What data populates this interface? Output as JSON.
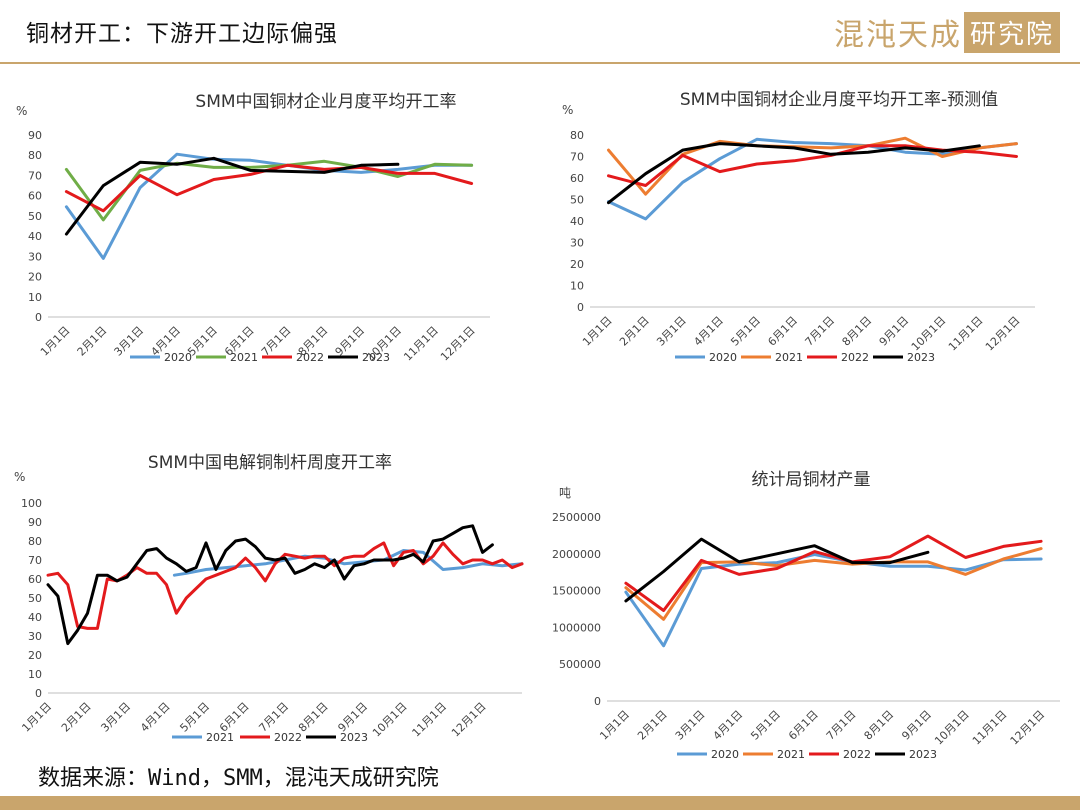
{
  "header": {
    "title": "铜材开工：下游开工边际偏强",
    "logo_text": "混沌天成",
    "logo_box_text": "研究院"
  },
  "footer": {
    "source": "数据来源：Wind，SMM，混沌天成研究院"
  },
  "colors": {
    "brand": "#c9a56c",
    "s2020": "#5b9bd5",
    "s2021_green": "#70ad47",
    "s2021_orange": "#ed7d31",
    "s2022": "#e31a1c",
    "s2023": "#000000"
  },
  "chart_data": [
    {
      "type": "line",
      "title": "SMM中国铜材企业月度平均开工率",
      "unit": "%",
      "categories": [
        "1月1日",
        "2月1日",
        "3月1日",
        "4月1日",
        "5月1日",
        "6月1日",
        "7月1日",
        "8月1日",
        "9月1日",
        "10月1日",
        "11月1日",
        "12月1日"
      ],
      "ylim": [
        0,
        90
      ],
      "yticks": [
        0,
        10,
        20,
        30,
        40,
        50,
        60,
        70,
        80,
        90
      ],
      "legend_position": "bottom",
      "series": [
        {
          "name": "2020",
          "color": "#5b9bd5",
          "values": [
            54.5,
            29,
            64,
            80.5,
            78,
            77.5,
            75,
            72.5,
            71.5,
            73,
            75,
            75
          ]
        },
        {
          "name": "2021",
          "color": "#70ad47",
          "values": [
            73,
            48,
            72.5,
            76,
            74,
            74,
            75,
            77,
            74,
            69.5,
            75.5,
            75
          ]
        },
        {
          "name": "2022",
          "color": "#e31a1c",
          "values": [
            62,
            52.5,
            70,
            60.5,
            68,
            70.5,
            75,
            73,
            74,
            71,
            71,
            66
          ]
        },
        {
          "name": "2023",
          "color": "#000000",
          "values": [
            41,
            65,
            76.5,
            75.5,
            78.5,
            72.5,
            72,
            71.5,
            75,
            75.5,
            null,
            null
          ]
        }
      ]
    },
    {
      "type": "line",
      "title": "SMM中国铜材企业月度平均开工率-预测值",
      "unit": "%",
      "categories": [
        "1月1日",
        "2月1日",
        "3月1日",
        "4月1日",
        "5月1日",
        "6月1日",
        "7月1日",
        "8月1日",
        "9月1日",
        "10月1日",
        "11月1日",
        "12月1日"
      ],
      "ylim": [
        0,
        80
      ],
      "yticks": [
        0,
        10,
        20,
        30,
        40,
        50,
        60,
        70,
        80
      ],
      "legend_position": "bottom",
      "series": [
        {
          "name": "2020",
          "color": "#5b9bd5",
          "values": [
            49,
            41,
            58,
            69,
            78,
            76.5,
            76,
            75,
            72,
            71,
            74,
            76
          ]
        },
        {
          "name": "2021",
          "color": "#ed7d31",
          "values": [
            73,
            52.5,
            71,
            77,
            75,
            74.5,
            74,
            75,
            78.5,
            70,
            74,
            76
          ]
        },
        {
          "name": "2022",
          "color": "#e31a1c",
          "values": [
            61,
            56.5,
            70.5,
            63,
            66.5,
            68,
            70.5,
            75,
            75,
            73,
            72,
            70
          ]
        },
        {
          "name": "2023",
          "color": "#000000",
          "values": [
            48.5,
            62,
            73,
            76,
            75,
            74,
            71,
            72,
            74,
            72.5,
            75,
            null
          ]
        }
      ]
    },
    {
      "type": "line",
      "title": "SMM中国电解铜制杆周度开工率",
      "unit": "%",
      "categories": [
        "1月1日",
        "2月1日",
        "3月1日",
        "4月1日",
        "5月1日",
        "6月1日",
        "7月1日",
        "8月1日",
        "9月1日",
        "10月1日",
        "11月1日",
        "12月1日"
      ],
      "x_range": [
        0,
        12
      ],
      "ylim": [
        0,
        100
      ],
      "yticks": [
        0,
        10,
        20,
        30,
        40,
        50,
        60,
        70,
        80,
        90,
        100
      ],
      "legend_position": "bottom",
      "series": [
        {
          "name": "2021",
          "color": "#5b9bd5",
          "x": [
            3.2,
            3.5,
            4,
            4.5,
            5,
            5.5,
            6,
            6.5,
            7,
            7.5,
            8,
            8.5,
            9,
            9.5,
            10,
            10.5,
            11,
            11.5,
            12
          ],
          "y": [
            62,
            63,
            65,
            66,
            67,
            68,
            70,
            72,
            71,
            68,
            69,
            70,
            75,
            74,
            65,
            66,
            68,
            67,
            68
          ]
        },
        {
          "name": "2022",
          "color": "#e31a1c",
          "x": [
            0,
            0.25,
            0.5,
            0.75,
            1,
            1.25,
            1.5,
            1.75,
            2,
            2.25,
            2.5,
            2.75,
            3,
            3.25,
            3.5,
            3.75,
            4,
            4.25,
            4.5,
            4.75,
            5,
            5.25,
            5.5,
            5.75,
            6,
            6.25,
            6.5,
            6.75,
            7,
            7.25,
            7.5,
            7.75,
            8,
            8.25,
            8.5,
            8.75,
            9,
            9.25,
            9.5,
            9.75,
            10,
            10.25,
            10.5,
            10.75,
            11,
            11.25,
            11.5,
            11.75,
            12
          ],
          "y": [
            62,
            63,
            57,
            35,
            34,
            34,
            60,
            59,
            62,
            66,
            63,
            63,
            57,
            42,
            50,
            55,
            60,
            62,
            64,
            66,
            71,
            66,
            59,
            68,
            73,
            72,
            71,
            72,
            72,
            67,
            71,
            72,
            72,
            76,
            79,
            67,
            74,
            75,
            68,
            72,
            79,
            73,
            68,
            70,
            70,
            68,
            70,
            66,
            68
          ]
        },
        {
          "name": "2023",
          "color": "#000000",
          "x": [
            0,
            0.25,
            0.5,
            0.75,
            1,
            1.25,
            1.5,
            1.75,
            2,
            2.25,
            2.5,
            2.75,
            3,
            3.25,
            3.5,
            3.75,
            4,
            4.25,
            4.5,
            4.75,
            5,
            5.25,
            5.5,
            5.75,
            6,
            6.25,
            6.5,
            6.75,
            7,
            7.25,
            7.5,
            7.75,
            8,
            8.25,
            8.5,
            8.75,
            9,
            9.25,
            9.5,
            9.75,
            10,
            10.25,
            10.5,
            10.75,
            11,
            11.25,
            11.5
          ],
          "y": [
            57,
            51,
            26,
            33,
            42,
            62,
            62,
            59,
            61,
            68,
            75,
            76,
            71,
            68,
            64,
            66,
            79,
            65,
            75,
            80,
            81,
            77,
            71,
            70,
            71,
            63,
            65,
            68,
            66,
            70,
            60,
            67,
            68,
            70,
            70,
            70,
            71,
            73,
            69,
            80,
            81,
            84,
            87,
            88,
            74,
            78,
            null
          ]
        }
      ]
    },
    {
      "type": "line",
      "title": "统计局铜材产量",
      "unit": "吨",
      "categories": [
        "1月1日",
        "2月1日",
        "3月1日",
        "4月1日",
        "5月1日",
        "6月1日",
        "7月1日",
        "8月1日",
        "9月1日",
        "10月1日",
        "11月1日",
        "12月1日"
      ],
      "ylim": [
        0,
        2500000
      ],
      "yticks": [
        0,
        500000,
        1000000,
        1500000,
        2000000,
        2500000
      ],
      "legend_position": "bottom",
      "series": [
        {
          "name": "2020",
          "color": "#5b9bd5",
          "values": [
            1480000,
            750000,
            1800000,
            1860000,
            1880000,
            1990000,
            1890000,
            1830000,
            1830000,
            1780000,
            1920000,
            1930000
          ]
        },
        {
          "name": "2021",
          "color": "#ed7d31",
          "values": [
            1540000,
            1110000,
            1880000,
            1890000,
            1840000,
            1910000,
            1860000,
            1890000,
            1890000,
            1720000,
            1930000,
            2070000
          ]
        },
        {
          "name": "2022",
          "color": "#e31a1c",
          "values": [
            1600000,
            1230000,
            1910000,
            1720000,
            1800000,
            2030000,
            1890000,
            1960000,
            2240000,
            1950000,
            2100000,
            2170000
          ]
        },
        {
          "name": "2023",
          "color": "#000000",
          "values": [
            1360000,
            1760000,
            2200000,
            1890000,
            2000000,
            2110000,
            1880000,
            1880000,
            2020000,
            null,
            null,
            null
          ]
        }
      ]
    }
  ]
}
